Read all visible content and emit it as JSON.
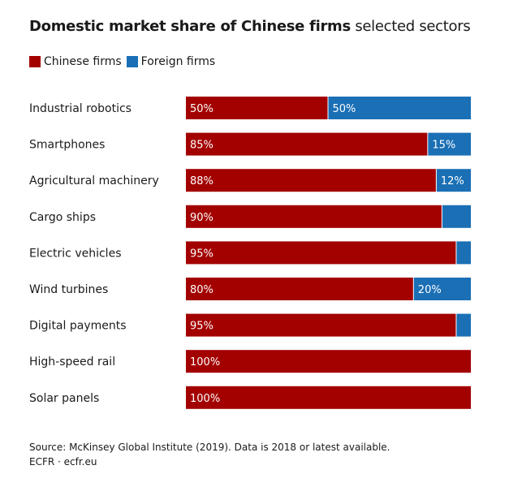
{
  "title_bold": "Domestic market share of Chinese firms",
  "title_rest": "selected sectors",
  "legend": [
    {
      "label": "Chinese firms",
      "color": "#a30000"
    },
    {
      "label": "Foreign firms",
      "color": "#1a6fb5"
    }
  ],
  "source_line1": "Source: McKinsey Global Institute (2019). Data is 2018 or latest available.",
  "source_line2": "ECFR · ecfr.eu",
  "chart_data": {
    "type": "bar",
    "orientation": "horizontal",
    "stacked": true,
    "categories": [
      "Industrial robotics",
      "Smartphones",
      "Agricultural machinery",
      "Cargo ships",
      "Electric vehicles",
      "Wind turbines",
      "Digital payments",
      "High-speed rail",
      "Solar panels"
    ],
    "series": [
      {
        "name": "Chinese firms",
        "color": "#a30000",
        "values": [
          50,
          85,
          88,
          90,
          95,
          80,
          95,
          100,
          100
        ],
        "labels": [
          "50%",
          "85%",
          "88%",
          "90%",
          "95%",
          "80%",
          "95%",
          "100%",
          "100%"
        ]
      },
      {
        "name": "Foreign firms",
        "color": "#1a6fb5",
        "values": [
          50,
          15,
          12,
          10,
          5,
          20,
          5,
          0,
          0
        ],
        "labels": [
          "50%",
          "15%",
          "12%",
          "",
          "",
          "20%",
          "",
          "",
          ""
        ]
      }
    ],
    "xlim": [
      0,
      100
    ],
    "grid": false,
    "legend_position": "top-left"
  }
}
